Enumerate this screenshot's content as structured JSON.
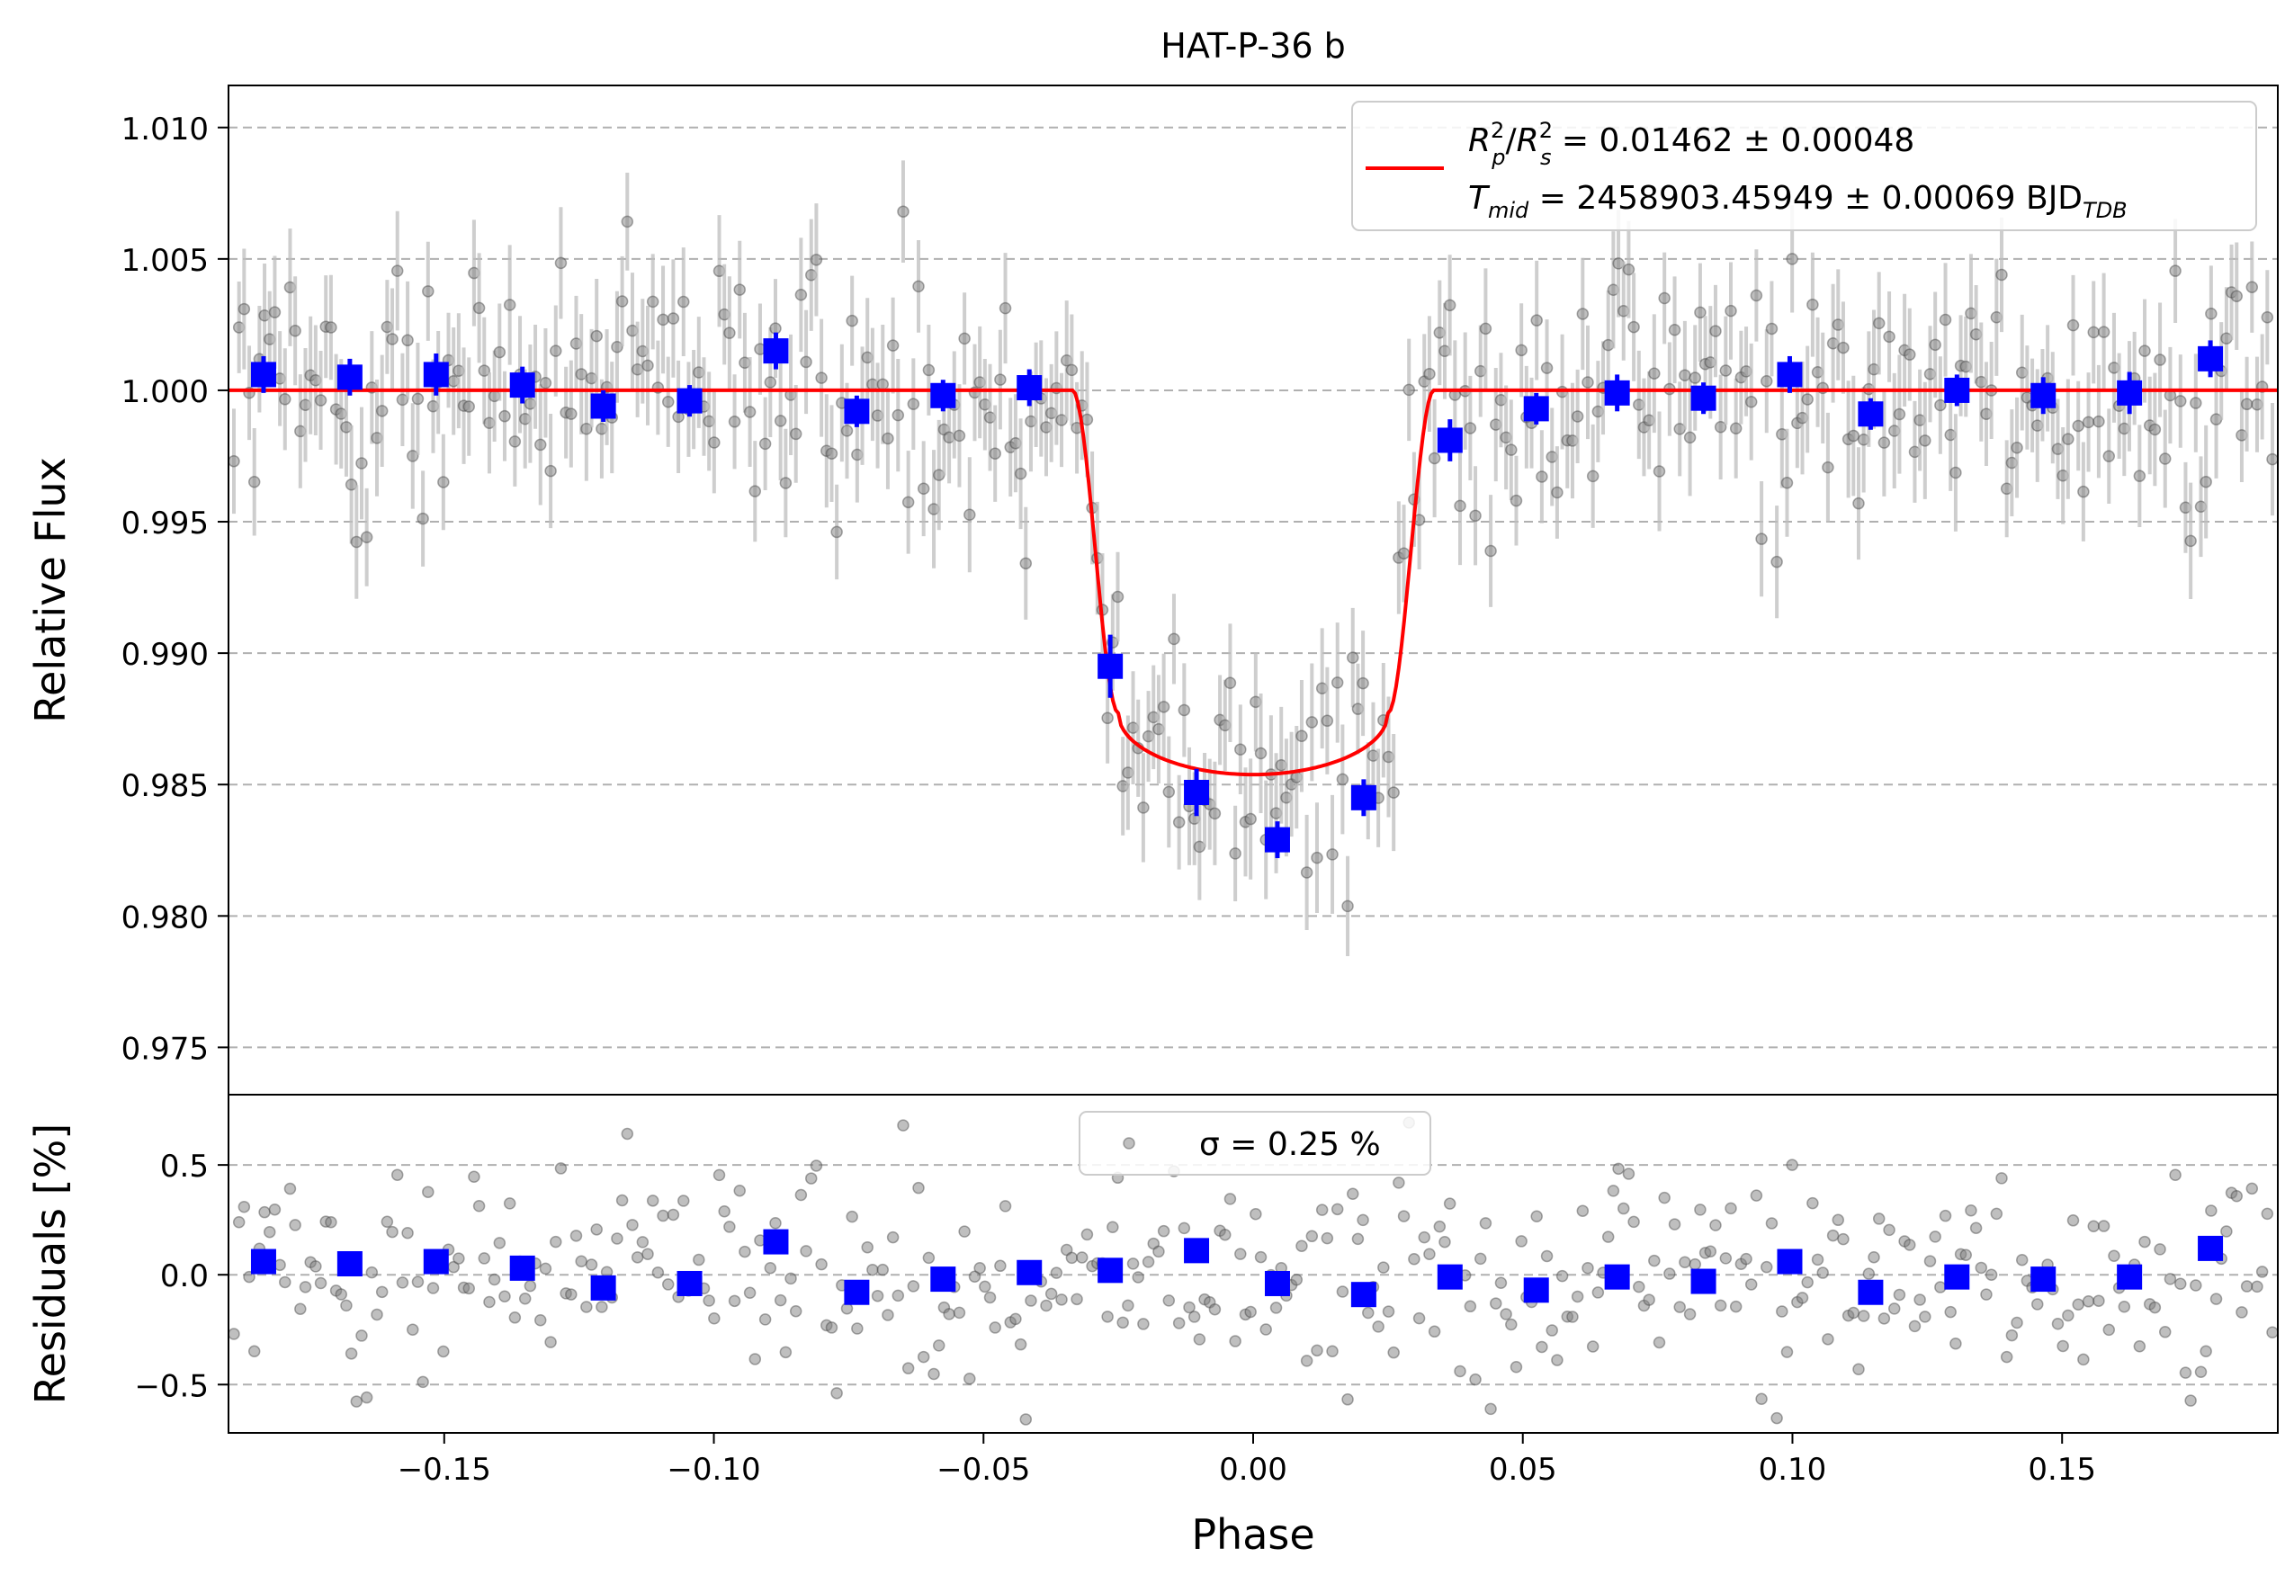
{
  "chart_data": [
    {
      "type": "scatter",
      "title": "HAT-P-36 b",
      "xlabel": "",
      "ylabel": "Relative Flux",
      "xlim": [
        -0.19,
        0.19
      ],
      "ylim": [
        0.9732,
        1.0116
      ],
      "grid": "horizontal dashed",
      "yticks": [
        0.975,
        0.98,
        0.985,
        0.99,
        0.995,
        1.0,
        1.005,
        1.01
      ],
      "ytick_labels": [
        "0.975",
        "0.980",
        "0.985",
        "0.990",
        "0.995",
        "1.000",
        "1.005",
        "1.010"
      ],
      "legend": {
        "placement": "top-right",
        "line1": {
          "text": "R²p/R²s = 0.01462 ± 0.00048"
        },
        "line2": {
          "text": "Tmid = 2458903.45949 ± 0.00069 BJDTDB"
        }
      },
      "model": {
        "color": "#ff0000",
        "baseline": 1.0,
        "depth": 0.01462,
        "t14_half": 0.0335,
        "ingress": 0.0085
      },
      "series": [
        {
          "style": "binned",
          "color": "#0000ff",
          "x": [
            -0.1835,
            -0.1675,
            -0.1515,
            -0.1355,
            -0.1205,
            -0.1045,
            -0.0885,
            -0.0735,
            -0.0575,
            -0.0415,
            -0.0265,
            -0.0105,
            0.0045,
            0.0205,
            0.0365,
            0.0525,
            0.0675,
            0.0835,
            0.0995,
            0.1145,
            0.1305,
            0.1465,
            0.1625,
            0.1775
          ],
          "y": [
            1.0006,
            1.0005,
            1.0006,
            1.0002,
            0.9994,
            0.9996,
            1.0015,
            0.9992,
            0.9998,
            1.0001,
            0.9895,
            0.9847,
            0.9829,
            0.9845,
            0.9981,
            0.9993,
            0.9999,
            0.9997,
            1.0006,
            0.9991,
            1.0,
            0.9998,
            0.9999,
            1.0012
          ],
          "yerr": [
            0.0007,
            0.0007,
            0.0008,
            0.0007,
            0.0006,
            0.0006,
            0.0007,
            0.0006,
            0.0006,
            0.0007,
            0.0012,
            0.0009,
            0.0007,
            0.0007,
            0.0008,
            0.0006,
            0.0007,
            0.0006,
            0.0007,
            0.0006,
            0.0006,
            0.0007,
            0.0008,
            0.0007
          ]
        }
      ]
    },
    {
      "type": "scatter",
      "title": "",
      "xlabel": "Phase",
      "ylabel": "Residuals [%]",
      "xlim": [
        -0.19,
        0.19
      ],
      "ylim": [
        -0.72,
        0.82
      ],
      "grid": "horizontal dashed",
      "xticks": [
        -0.15,
        -0.1,
        -0.05,
        0.0,
        0.05,
        0.1,
        0.15
      ],
      "xtick_labels": [
        "−0.15",
        "−0.10",
        "−0.05",
        "0.00",
        "0.05",
        "0.10",
        "0.15"
      ],
      "yticks": [
        -0.5,
        0.0,
        0.5
      ],
      "ytick_labels": [
        "−0.5",
        "0.0",
        "0.5"
      ],
      "legend": {
        "placement": "top-center",
        "text": "σ = 0.25 %"
      },
      "series": [
        {
          "style": "binned",
          "color": "#0000ff",
          "x": [
            -0.1835,
            -0.1675,
            -0.1515,
            -0.1355,
            -0.1205,
            -0.1045,
            -0.0885,
            -0.0735,
            -0.0575,
            -0.0415,
            -0.0265,
            -0.0105,
            0.0045,
            0.0205,
            0.0365,
            0.0525,
            0.0675,
            0.0835,
            0.0995,
            0.1145,
            0.1305,
            0.1465,
            0.1625,
            0.1775
          ],
          "y": [
            0.06,
            0.05,
            0.06,
            0.03,
            -0.06,
            -0.04,
            0.15,
            -0.08,
            -0.02,
            0.01,
            0.02,
            0.11,
            -0.04,
            -0.09,
            -0.01,
            -0.07,
            -0.01,
            -0.03,
            0.06,
            -0.08,
            -0.01,
            -0.02,
            -0.01,
            0.12
          ]
        }
      ]
    }
  ]
}
